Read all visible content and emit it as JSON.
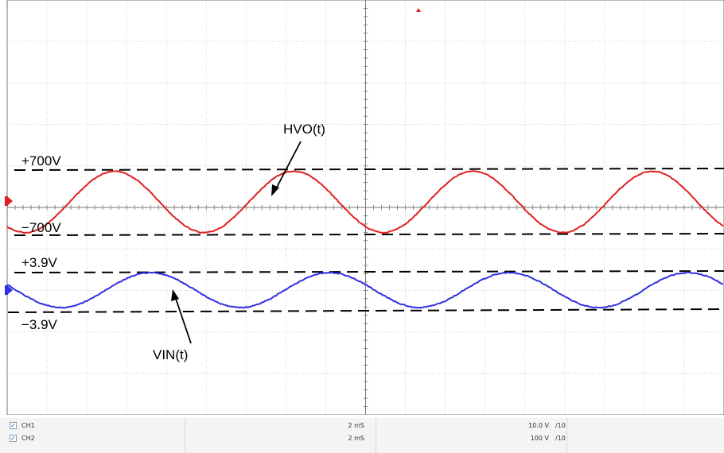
{
  "chart_data": {
    "type": "line",
    "title": "",
    "xlabel": "",
    "ylabel": "",
    "grid": true,
    "series": [
      {
        "name": "HVO(t)",
        "color": "#e02020",
        "shape": "sine",
        "amplitude": 700,
        "unit": "V",
        "cycles_visible": 4.0
      },
      {
        "name": "VIN(t)",
        "color": "#3030e0",
        "shape": "sine",
        "amplitude": 3.9,
        "unit": "V",
        "cycles_visible": 4.0
      }
    ],
    "reference_lines": [
      {
        "label": "+700V",
        "value": 700,
        "unit": "V",
        "channel": "CH1"
      },
      {
        "label": "−700V",
        "value": -700,
        "unit": "V",
        "channel": "CH1"
      },
      {
        "label": "+3.9V",
        "value": 3.9,
        "unit": "V",
        "channel": "CH2"
      },
      {
        "label": "−3.9V",
        "value": -3.9,
        "unit": "V",
        "channel": "CH2"
      }
    ],
    "annotations": [
      {
        "text": "HVO(t)",
        "points_to": "HVO(t)"
      },
      {
        "text": "VIN(t)",
        "points_to": "VIN(t)"
      }
    ],
    "markers": [
      {
        "name": "ch1-level-marker",
        "color": "#e02020"
      },
      {
        "name": "ch2-level-marker",
        "color": "#3030e0"
      },
      {
        "name": "trigger-marker",
        "color": "#e02020"
      }
    ]
  },
  "status_bar": {
    "rows": [
      {
        "checked": true,
        "channel": "CH1",
        "timebase": "2  mS",
        "volts": "10.0 V",
        "probe": "/10"
      },
      {
        "checked": true,
        "channel": "CH2",
        "timebase": "2  mS",
        "volts": "100  V",
        "probe": "/10"
      }
    ]
  }
}
